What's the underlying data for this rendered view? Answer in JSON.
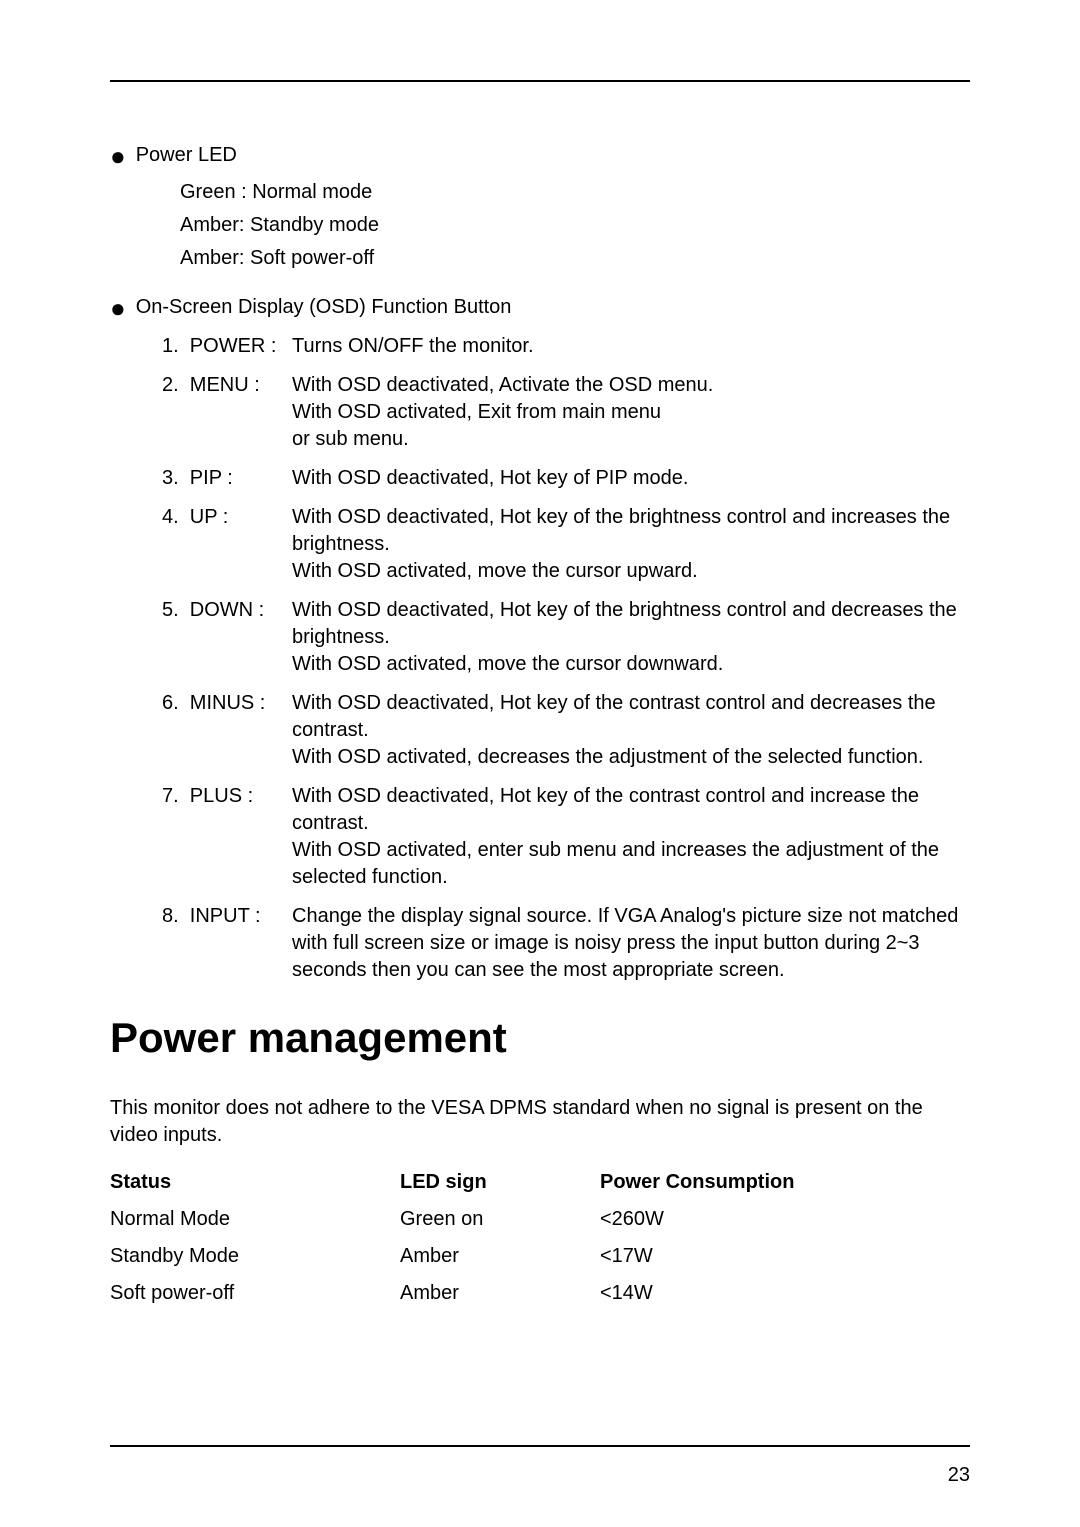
{
  "page_number": "23",
  "power_led": {
    "title": "Power LED",
    "lines": [
      "Green : Normal mode",
      "Amber: Standby mode",
      "Amber: Soft power-off"
    ]
  },
  "osd": {
    "title": "On-Screen Display (OSD) Function Button",
    "items": [
      {
        "label": "1.  POWER :",
        "desc": "Turns ON/OFF the monitor."
      },
      {
        "label": "2.  MENU :",
        "desc": "With OSD deactivated, Activate the OSD menu.\nWith OSD activated, Exit from main menu\nor sub menu."
      },
      {
        "label": "3.  PIP :",
        "desc": "With OSD deactivated, Hot key of PIP mode."
      },
      {
        "label": "4.  UP :",
        "desc": "With OSD deactivated, Hot key of the brightness control and increases the brightness.\nWith OSD activated, move the cursor upward."
      },
      {
        "label": "5.  DOWN :",
        "desc": "With OSD deactivated, Hot key of the brightness control and decreases the brightness.\nWith OSD activated, move the cursor downward."
      },
      {
        "label": "6.  MINUS :",
        "desc": "With OSD deactivated, Hot key of the contrast control and decreases the contrast.\nWith OSD activated, decreases the adjustment of the selected function."
      },
      {
        "label": "7.  PLUS :",
        "desc": "With OSD deactivated, Hot key of the contrast control and increase the contrast.\nWith OSD activated, enter sub menu and increases the adjustment of the selected function."
      },
      {
        "label": "8.  INPUT :",
        "desc": "Change the display signal source. If VGA Analog's picture size not matched with full screen size or image is noisy press the input button during 2~3 seconds then you can see the most appropriate screen."
      }
    ]
  },
  "power_mgmt": {
    "heading": "Power management",
    "text": "This monitor does not adhere to the VESA DPMS standard when no signal is present on the video inputs.",
    "header": {
      "c1": "Status",
      "c2": "LED sign",
      "c3": "Power Consumption"
    },
    "rows": [
      {
        "c1": "Normal Mode",
        "c2": "Green on",
        "c3": "<260W"
      },
      {
        "c1": "Standby Mode",
        "c2": "Amber",
        "c3": "<17W"
      },
      {
        "c1": "Soft power-off",
        "c2": "Amber",
        "c3": "<14W"
      }
    ]
  }
}
